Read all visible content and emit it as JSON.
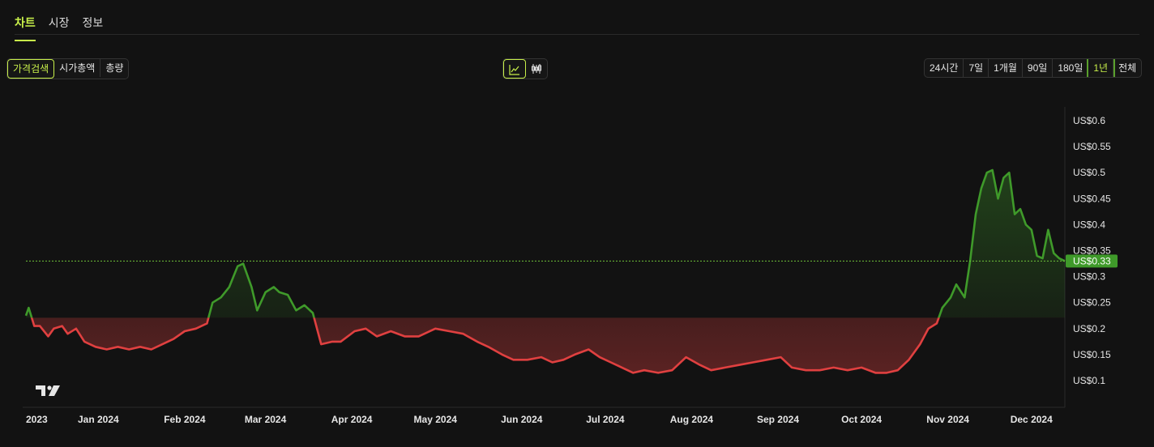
{
  "tabs": [
    {
      "label": "차트",
      "active": true
    },
    {
      "label": "시장",
      "active": false
    },
    {
      "label": "정보",
      "active": false
    }
  ],
  "metric_toggle": [
    {
      "label": "가격검색",
      "active": true
    },
    {
      "label": "시가총액",
      "active": false
    },
    {
      "label": "총량",
      "active": false
    }
  ],
  "chart_style_toggle": [
    {
      "icon": "line-chart-icon",
      "active": true
    },
    {
      "icon": "candlestick-icon",
      "active": false
    }
  ],
  "range_toggle": [
    {
      "label": "24시간",
      "active": false
    },
    {
      "label": "7일",
      "active": false
    },
    {
      "label": "1개월",
      "active": false
    },
    {
      "label": "90일",
      "active": false
    },
    {
      "label": "180일",
      "active": false
    },
    {
      "label": "1년",
      "active": true
    },
    {
      "label": "전체",
      "active": false
    }
  ],
  "colors": {
    "accent": "#c8f04a",
    "up": "#3f9a2a",
    "down": "#e04040",
    "background": "#121212",
    "reference_line": "#6fc23a"
  },
  "chart_data": {
    "type": "line",
    "current_price_label": "US$0.33",
    "baseline": 0.221,
    "reference_price": 0.33,
    "y_ticks": [
      {
        "value": 0.6,
        "label": "US$0.6"
      },
      {
        "value": 0.55,
        "label": "US$0.55"
      },
      {
        "value": 0.5,
        "label": "US$0.5"
      },
      {
        "value": 0.45,
        "label": "US$0.45"
      },
      {
        "value": 0.4,
        "label": "US$0.4"
      },
      {
        "value": 0.35,
        "label": "US$0.35"
      },
      {
        "value": 0.3,
        "label": "US$0.3"
      },
      {
        "value": 0.25,
        "label": "US$0.25"
      },
      {
        "value": 0.2,
        "label": "US$0.2"
      },
      {
        "value": 0.15,
        "label": "US$0.15"
      },
      {
        "value": 0.1,
        "label": "US$0.1"
      }
    ],
    "ylim": [
      0.05,
      0.63
    ],
    "x_ticks": [
      {
        "label": "2023",
        "date": "2023-12-06"
      },
      {
        "label": "Jan 2024",
        "date": "2024-01-01"
      },
      {
        "label": "Feb 2024",
        "date": "2024-02-01"
      },
      {
        "label": "Mar 2024",
        "date": "2024-03-01"
      },
      {
        "label": "Apr 2024",
        "date": "2024-04-01"
      },
      {
        "label": "May 2024",
        "date": "2024-05-01"
      },
      {
        "label": "Jun 2024",
        "date": "2024-06-01"
      },
      {
        "label": "Jul 2024",
        "date": "2024-07-01"
      },
      {
        "label": "Aug 2024",
        "date": "2024-08-01"
      },
      {
        "label": "Sep 2024",
        "date": "2024-09-01"
      },
      {
        "label": "Oct 2024",
        "date": "2024-10-01"
      },
      {
        "label": "Nov 2024",
        "date": "2024-11-01"
      },
      {
        "label": "Dec 2024",
        "date": "2024-12-01"
      }
    ],
    "series": [
      {
        "points": [
          [
            "2023-12-06",
            0.225
          ],
          [
            "2023-12-07",
            0.24
          ],
          [
            "2023-12-09",
            0.205
          ],
          [
            "2023-12-11",
            0.205
          ],
          [
            "2023-12-14",
            0.185
          ],
          [
            "2023-12-16",
            0.2
          ],
          [
            "2023-12-19",
            0.205
          ],
          [
            "2023-12-21",
            0.19
          ],
          [
            "2023-12-24",
            0.2
          ],
          [
            "2023-12-27",
            0.175
          ],
          [
            "2023-12-31",
            0.165
          ],
          [
            "2024-01-04",
            0.16
          ],
          [
            "2024-01-08",
            0.165
          ],
          [
            "2024-01-12",
            0.16
          ],
          [
            "2024-01-16",
            0.165
          ],
          [
            "2024-01-20",
            0.16
          ],
          [
            "2024-01-24",
            0.17
          ],
          [
            "2024-01-28",
            0.18
          ],
          [
            "2024-02-01",
            0.195
          ],
          [
            "2024-02-05",
            0.2
          ],
          [
            "2024-02-09",
            0.21
          ],
          [
            "2024-02-11",
            0.25
          ],
          [
            "2024-02-14",
            0.26
          ],
          [
            "2024-02-17",
            0.28
          ],
          [
            "2024-02-20",
            0.32
          ],
          [
            "2024-02-22",
            0.325
          ],
          [
            "2024-02-25",
            0.28
          ],
          [
            "2024-02-27",
            0.235
          ],
          [
            "2024-03-01",
            0.27
          ],
          [
            "2024-03-04",
            0.28
          ],
          [
            "2024-03-06",
            0.27
          ],
          [
            "2024-03-09",
            0.265
          ],
          [
            "2024-03-12",
            0.235
          ],
          [
            "2024-03-15",
            0.245
          ],
          [
            "2024-03-18",
            0.23
          ],
          [
            "2024-03-21",
            0.17
          ],
          [
            "2024-03-25",
            0.175
          ],
          [
            "2024-03-28",
            0.175
          ],
          [
            "2024-04-02",
            0.195
          ],
          [
            "2024-04-06",
            0.2
          ],
          [
            "2024-04-10",
            0.185
          ],
          [
            "2024-04-15",
            0.195
          ],
          [
            "2024-04-20",
            0.185
          ],
          [
            "2024-04-25",
            0.185
          ],
          [
            "2024-05-01",
            0.2
          ],
          [
            "2024-05-06",
            0.195
          ],
          [
            "2024-05-11",
            0.19
          ],
          [
            "2024-05-16",
            0.175
          ],
          [
            "2024-05-20",
            0.165
          ],
          [
            "2024-05-25",
            0.15
          ],
          [
            "2024-05-29",
            0.14
          ],
          [
            "2024-06-03",
            0.14
          ],
          [
            "2024-06-08",
            0.145
          ],
          [
            "2024-06-12",
            0.135
          ],
          [
            "2024-06-16",
            0.14
          ],
          [
            "2024-06-20",
            0.15
          ],
          [
            "2024-06-25",
            0.16
          ],
          [
            "2024-06-29",
            0.145
          ],
          [
            "2024-07-03",
            0.135
          ],
          [
            "2024-07-07",
            0.125
          ],
          [
            "2024-07-11",
            0.115
          ],
          [
            "2024-07-15",
            0.12
          ],
          [
            "2024-07-20",
            0.115
          ],
          [
            "2024-07-25",
            0.12
          ],
          [
            "2024-07-30",
            0.145
          ],
          [
            "2024-08-04",
            0.13
          ],
          [
            "2024-08-08",
            0.12
          ],
          [
            "2024-08-13",
            0.125
          ],
          [
            "2024-08-18",
            0.13
          ],
          [
            "2024-08-23",
            0.135
          ],
          [
            "2024-08-28",
            0.14
          ],
          [
            "2024-09-02",
            0.145
          ],
          [
            "2024-09-06",
            0.125
          ],
          [
            "2024-09-11",
            0.12
          ],
          [
            "2024-09-16",
            0.12
          ],
          [
            "2024-09-21",
            0.125
          ],
          [
            "2024-09-26",
            0.12
          ],
          [
            "2024-10-01",
            0.125
          ],
          [
            "2024-10-06",
            0.115
          ],
          [
            "2024-10-10",
            0.115
          ],
          [
            "2024-10-14",
            0.12
          ],
          [
            "2024-10-18",
            0.14
          ],
          [
            "2024-10-22",
            0.17
          ],
          [
            "2024-10-25",
            0.2
          ],
          [
            "2024-10-28",
            0.21
          ],
          [
            "2024-10-30",
            0.24
          ],
          [
            "2024-11-02",
            0.26
          ],
          [
            "2024-11-04",
            0.285
          ],
          [
            "2024-11-07",
            0.26
          ],
          [
            "2024-11-09",
            0.33
          ],
          [
            "2024-11-11",
            0.42
          ],
          [
            "2024-11-13",
            0.47
          ],
          [
            "2024-11-15",
            0.5
          ],
          [
            "2024-11-17",
            0.505
          ],
          [
            "2024-11-19",
            0.45
          ],
          [
            "2024-11-21",
            0.49
          ],
          [
            "2024-11-23",
            0.5
          ],
          [
            "2024-11-25",
            0.42
          ],
          [
            "2024-11-27",
            0.43
          ],
          [
            "2024-11-29",
            0.4
          ],
          [
            "2024-12-01",
            0.39
          ],
          [
            "2024-12-03",
            0.34
          ],
          [
            "2024-12-05",
            0.335
          ],
          [
            "2024-12-07",
            0.39
          ],
          [
            "2024-12-09",
            0.345
          ],
          [
            "2024-12-11",
            0.335
          ],
          [
            "2024-12-13",
            0.33
          ]
        ]
      }
    ],
    "grid": false
  }
}
